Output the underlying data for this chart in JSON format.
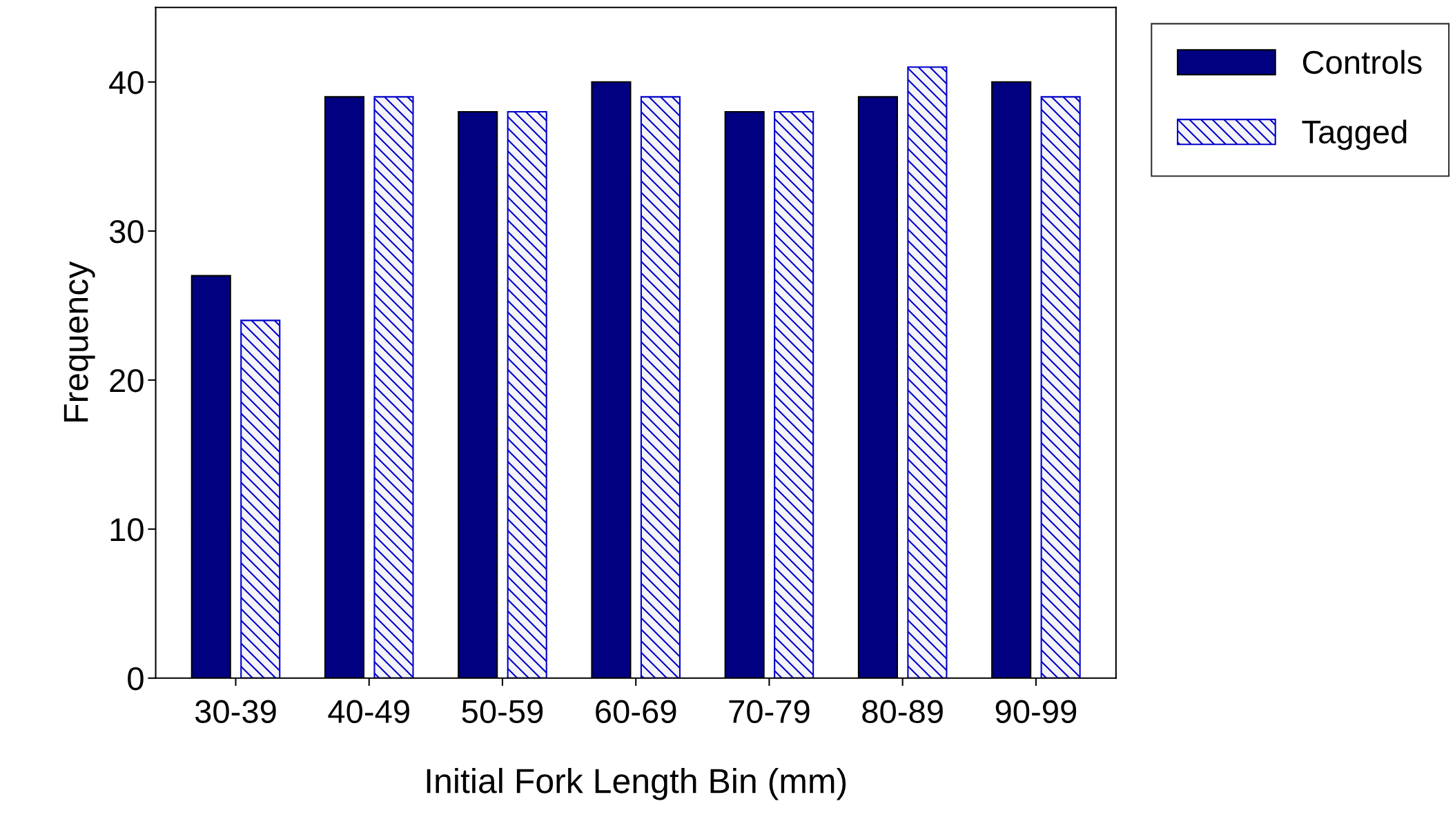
{
  "chart_data": {
    "type": "bar",
    "xlabel": "Initial Fork Length Bin (mm)",
    "ylabel": "Frequency",
    "categories": [
      "30-39",
      "40-49",
      "50-59",
      "60-69",
      "70-79",
      "80-89",
      "90-99"
    ],
    "series": [
      {
        "name": "Controls",
        "color": "#000080",
        "values": [
          27,
          39,
          38,
          40,
          38,
          39,
          40
        ]
      },
      {
        "name": "Tagged",
        "color": "#0000cc",
        "values": [
          24,
          39,
          38,
          39,
          38,
          41,
          39
        ]
      }
    ],
    "ylim": [
      0,
      45
    ],
    "yticks": [
      0,
      10,
      20,
      30,
      40
    ],
    "grid": false,
    "legend": "top right"
  }
}
